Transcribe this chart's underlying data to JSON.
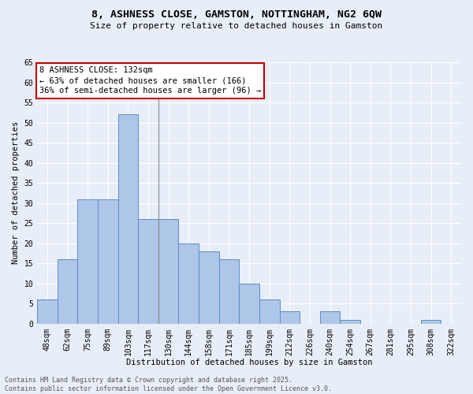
{
  "title1": "8, ASHNESS CLOSE, GAMSTON, NOTTINGHAM, NG2 6QW",
  "title2": "Size of property relative to detached houses in Gamston",
  "xlabel": "Distribution of detached houses by size in Gamston",
  "ylabel": "Number of detached properties",
  "bar_labels": [
    "48sqm",
    "62sqm",
    "75sqm",
    "89sqm",
    "103sqm",
    "117sqm",
    "130sqm",
    "144sqm",
    "158sqm",
    "171sqm",
    "185sqm",
    "199sqm",
    "212sqm",
    "226sqm",
    "240sqm",
    "254sqm",
    "267sqm",
    "281sqm",
    "295sqm",
    "308sqm",
    "322sqm"
  ],
  "bar_values": [
    6,
    16,
    31,
    31,
    52,
    26,
    26,
    20,
    18,
    16,
    10,
    6,
    3,
    0,
    3,
    1,
    0,
    0,
    0,
    1,
    0
  ],
  "bar_color": "#aec6e8",
  "bar_edge_color": "#5b8ec4",
  "background_color": "#e8eef8",
  "grid_color": "#ffffff",
  "annotation_text": "8 ASHNESS CLOSE: 132sqm\n← 63% of detached houses are smaller (166)\n36% of semi-detached houses are larger (96) →",
  "annotation_box_color": "#ffffff",
  "annotation_box_edge_color": "#cc0000",
  "vline_x": 6.0,
  "ylim": [
    0,
    65
  ],
  "yticks": [
    0,
    5,
    10,
    15,
    20,
    25,
    30,
    35,
    40,
    45,
    50,
    55,
    60,
    65
  ],
  "footer_text": "Contains HM Land Registry data © Crown copyright and database right 2025.\nContains public sector information licensed under the Open Government Licence v3.0.",
  "title_fontsize": 9.5,
  "subtitle_fontsize": 8,
  "axis_label_fontsize": 7.5,
  "tick_fontsize": 7,
  "annotation_fontsize": 7.5,
  "footer_fontsize": 6
}
